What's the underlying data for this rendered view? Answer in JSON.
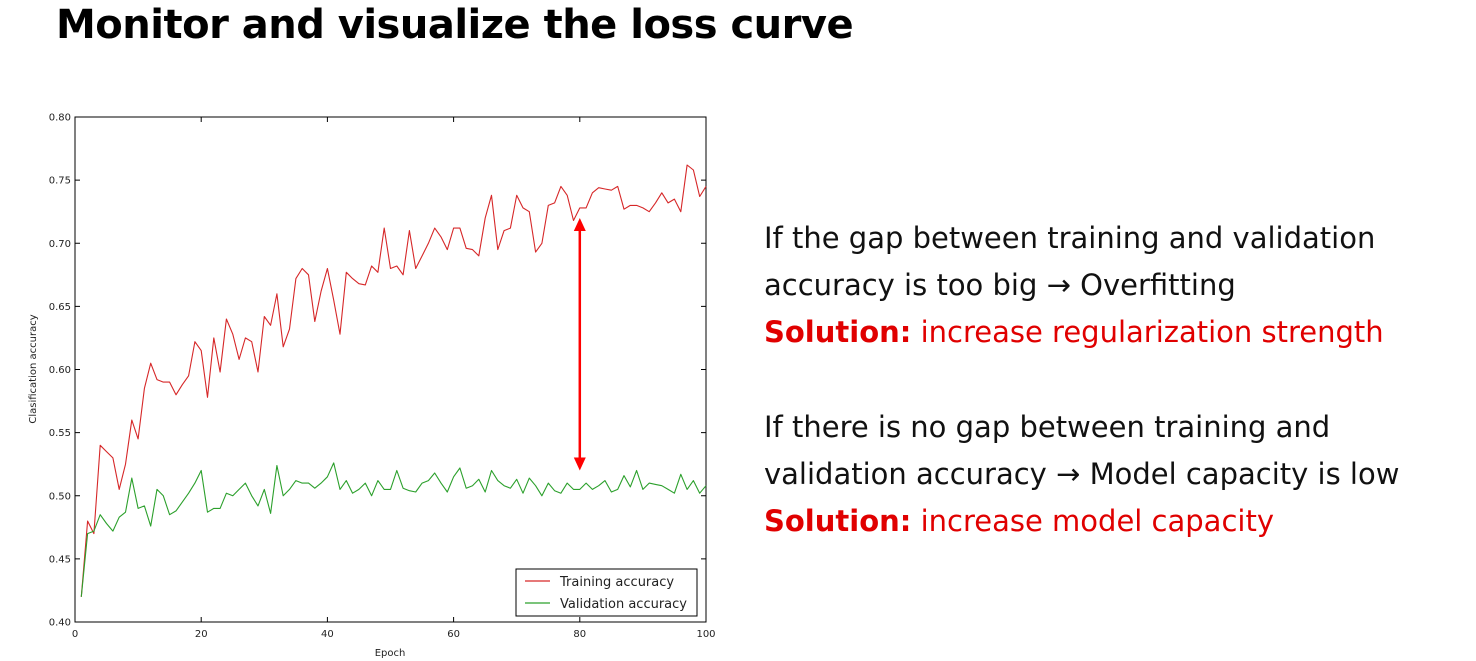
{
  "title": "Monitor and visualize the loss curve",
  "notes": [
    {
      "line1": "If the gap between training and validation",
      "line2": "accuracy is too big → Overfitting",
      "solution_label": "Solution:",
      "solution_text": " increase regularization strength"
    },
    {
      "line1": "If there is no gap between training and",
      "line2": "validation accuracy → Model capacity is low",
      "solution_label": "Solution:",
      "solution_text": " increase model capacity"
    }
  ],
  "colors": {
    "training": "#d62728",
    "validation": "#2ca02c",
    "arrow": "#ff0000",
    "solution": "#e00000"
  },
  "chart_data": {
    "type": "line",
    "xlabel": "Epoch",
    "ylabel": "Clasification accuracy",
    "xlim": [
      0,
      100
    ],
    "ylim": [
      0.4,
      0.8
    ],
    "xticks": [
      0,
      20,
      40,
      60,
      80,
      100
    ],
    "yticks": [
      0.4,
      0.45,
      0.5,
      0.55,
      0.6,
      0.65,
      0.7,
      0.75,
      0.8
    ],
    "ytick_labels": [
      "0.40",
      "0.45",
      "0.50",
      "0.55",
      "0.60",
      "0.65",
      "0.70",
      "0.75",
      "0.80"
    ],
    "grid": false,
    "legend_position": "lower-right",
    "series": [
      {
        "name": "Training accuracy",
        "color": "#d62728",
        "x": [
          1,
          2,
          3,
          4,
          5,
          6,
          7,
          8,
          9,
          10,
          11,
          12,
          13,
          14,
          15,
          16,
          17,
          18,
          19,
          20,
          21,
          22,
          23,
          24,
          25,
          26,
          27,
          28,
          29,
          30,
          31,
          32,
          33,
          34,
          35,
          36,
          37,
          38,
          39,
          40,
          41,
          42,
          43,
          44,
          45,
          46,
          47,
          48,
          49,
          50,
          51,
          52,
          53,
          54,
          55,
          56,
          57,
          58,
          59,
          60,
          61,
          62,
          63,
          64,
          65,
          66,
          67,
          68,
          69,
          70,
          71,
          72,
          73,
          74,
          75,
          76,
          77,
          78,
          79,
          80,
          81,
          82,
          83,
          84,
          85,
          86,
          87,
          88,
          89,
          90,
          91,
          92,
          93,
          94,
          95,
          96,
          97,
          98,
          99,
          100
        ],
        "y": [
          0.42,
          0.48,
          0.47,
          0.54,
          0.535,
          0.53,
          0.505,
          0.525,
          0.56,
          0.545,
          0.585,
          0.605,
          0.592,
          0.59,
          0.59,
          0.58,
          0.588,
          0.595,
          0.622,
          0.615,
          0.578,
          0.625,
          0.598,
          0.64,
          0.628,
          0.608,
          0.625,
          0.622,
          0.598,
          0.642,
          0.635,
          0.66,
          0.618,
          0.632,
          0.672,
          0.68,
          0.675,
          0.638,
          0.662,
          0.68,
          0.655,
          0.628,
          0.677,
          0.672,
          0.668,
          0.667,
          0.682,
          0.677,
          0.712,
          0.68,
          0.682,
          0.675,
          0.71,
          0.68,
          0.69,
          0.7,
          0.712,
          0.705,
          0.695,
          0.712,
          0.712,
          0.696,
          0.695,
          0.69,
          0.72,
          0.738,
          0.695,
          0.71,
          0.712,
          0.738,
          0.728,
          0.725,
          0.693,
          0.7,
          0.73,
          0.732,
          0.745,
          0.738,
          0.718,
          0.728,
          0.728,
          0.74,
          0.744,
          0.743,
          0.742,
          0.745,
          0.727,
          0.73,
          0.73,
          0.728,
          0.725,
          0.732,
          0.74,
          0.732,
          0.735,
          0.725,
          0.762,
          0.758,
          0.737,
          0.745
        ]
      },
      {
        "name": "Validation accuracy",
        "color": "#2ca02c",
        "x": [
          1,
          2,
          3,
          4,
          5,
          6,
          7,
          8,
          9,
          10,
          11,
          12,
          13,
          14,
          15,
          16,
          17,
          18,
          19,
          20,
          21,
          22,
          23,
          24,
          25,
          26,
          27,
          28,
          29,
          30,
          31,
          32,
          33,
          34,
          35,
          36,
          37,
          38,
          39,
          40,
          41,
          42,
          43,
          44,
          45,
          46,
          47,
          48,
          49,
          50,
          51,
          52,
          53,
          54,
          55,
          56,
          57,
          58,
          59,
          60,
          61,
          62,
          63,
          64,
          65,
          66,
          67,
          68,
          69,
          70,
          71,
          72,
          73,
          74,
          75,
          76,
          77,
          78,
          79,
          80,
          81,
          82,
          83,
          84,
          85,
          86,
          87,
          88,
          89,
          90,
          91,
          92,
          93,
          94,
          95,
          96,
          97,
          98,
          99,
          100
        ],
        "y": [
          0.42,
          0.47,
          0.472,
          0.485,
          0.478,
          0.472,
          0.483,
          0.487,
          0.514,
          0.49,
          0.492,
          0.476,
          0.505,
          0.5,
          0.485,
          0.488,
          0.495,
          0.502,
          0.51,
          0.52,
          0.487,
          0.49,
          0.49,
          0.502,
          0.5,
          0.505,
          0.51,
          0.5,
          0.492,
          0.505,
          0.486,
          0.524,
          0.5,
          0.505,
          0.512,
          0.51,
          0.51,
          0.506,
          0.51,
          0.515,
          0.526,
          0.505,
          0.512,
          0.502,
          0.505,
          0.51,
          0.5,
          0.512,
          0.505,
          0.505,
          0.52,
          0.506,
          0.504,
          0.503,
          0.51,
          0.512,
          0.518,
          0.51,
          0.503,
          0.515,
          0.522,
          0.506,
          0.508,
          0.513,
          0.503,
          0.52,
          0.512,
          0.508,
          0.506,
          0.513,
          0.502,
          0.514,
          0.508,
          0.5,
          0.51,
          0.504,
          0.502,
          0.51,
          0.505,
          0.505,
          0.51,
          0.505,
          0.508,
          0.512,
          0.503,
          0.505,
          0.516,
          0.507,
          0.52,
          0.505,
          0.51,
          0.509,
          0.508,
          0.505,
          0.502,
          0.517,
          0.505,
          0.512,
          0.502,
          0.508
        ]
      }
    ],
    "annotation": {
      "type": "double-arrow",
      "x": 80,
      "y_top": 0.72,
      "y_bottom": 0.52,
      "color": "#ff0000"
    }
  }
}
